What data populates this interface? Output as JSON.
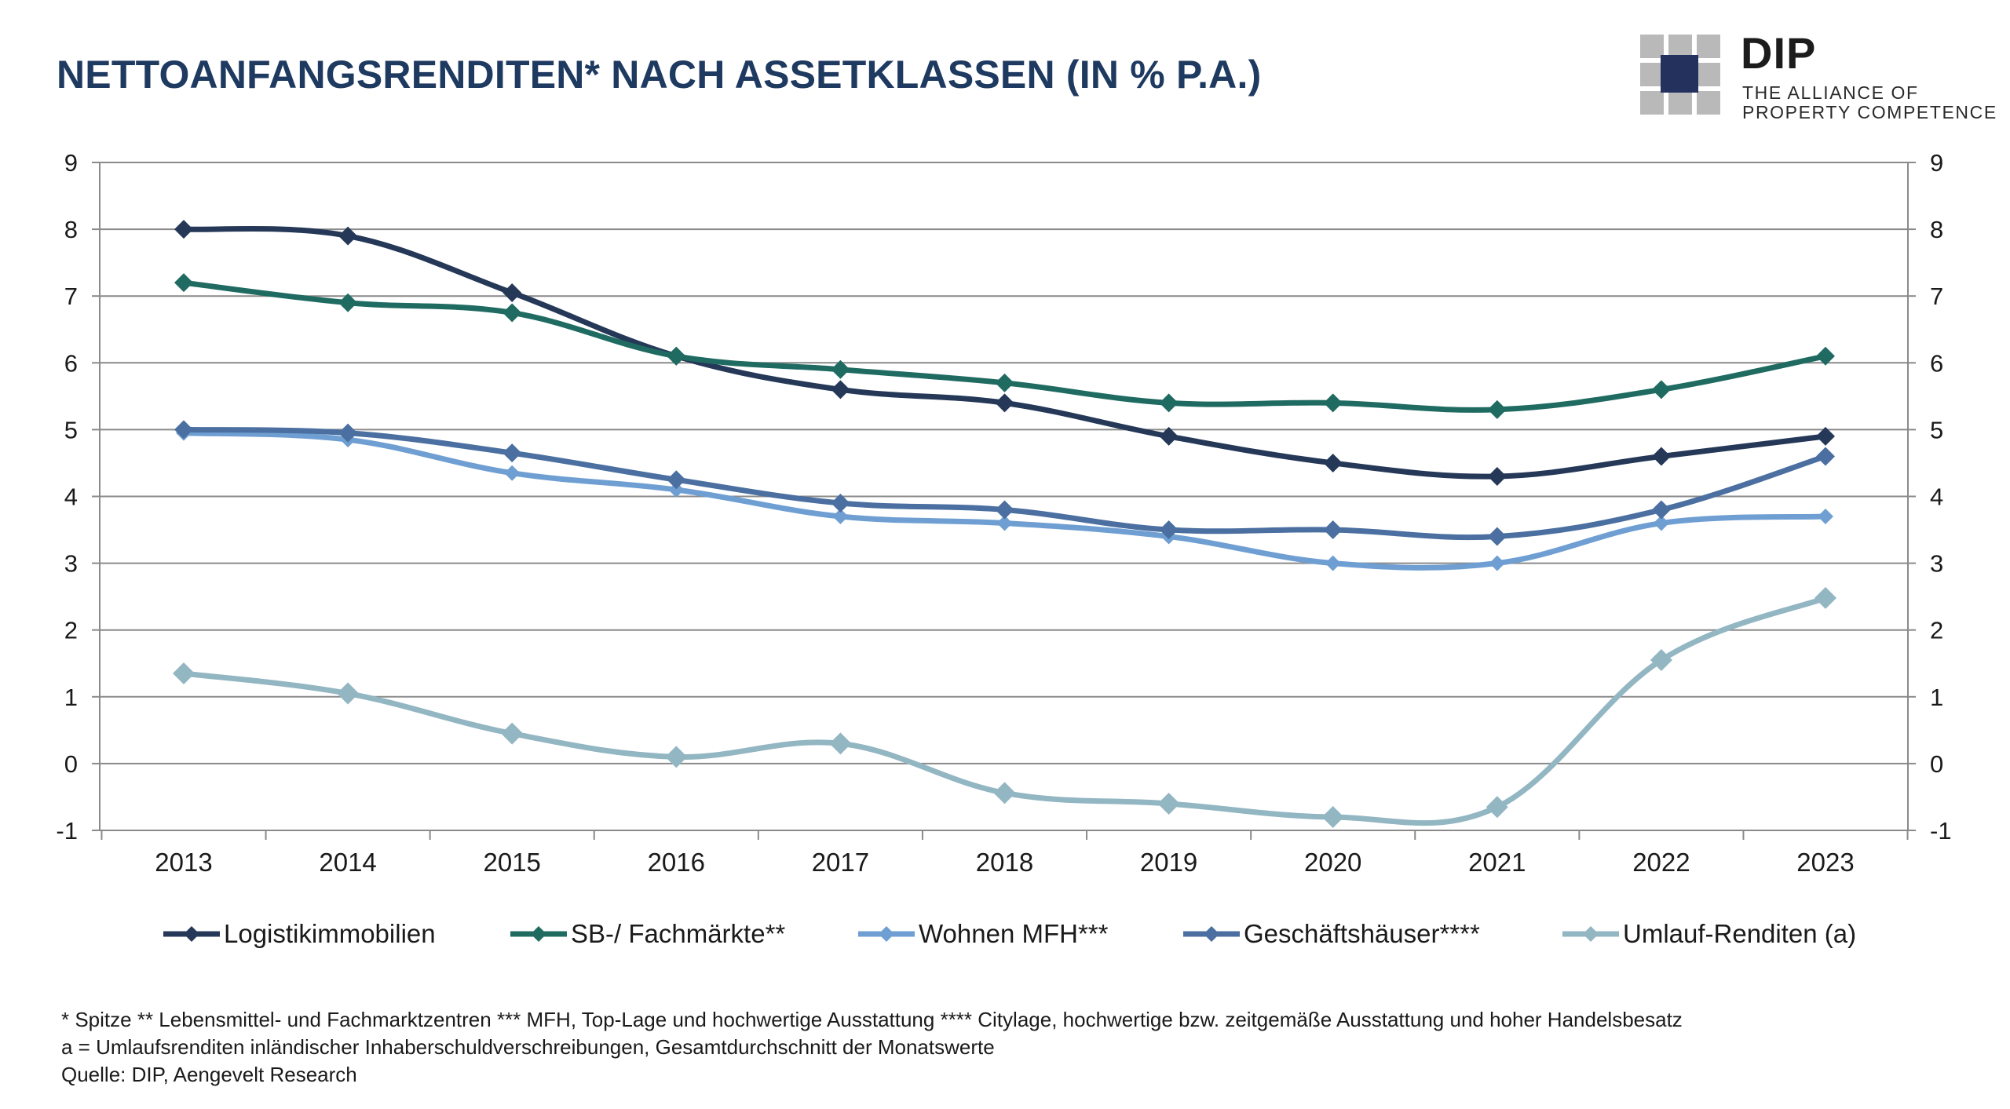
{
  "title": "NETTOANFANGSRENDITEN* NACH ASSETKLASSEN (IN % P.A.)",
  "logo": {
    "name": "DIP",
    "tagline_line1": "THE ALLIANCE OF",
    "tagline_line2": "PROPERTY COMPETENCE"
  },
  "chart_data": {
    "type": "line",
    "title": "NETTOANFANGSRENDITEN* NACH ASSETKLASSEN (IN % P.A.)",
    "xlabel": "",
    "ylabel": "",
    "x": [
      "2013",
      "2014",
      "2015",
      "2016",
      "2017",
      "2018",
      "2019",
      "2020",
      "2021",
      "2022",
      "2023"
    ],
    "ylim": [
      -1,
      9
    ],
    "yticks": [
      "9",
      "8",
      "7",
      "6",
      "5",
      "4",
      "3",
      "2",
      "1",
      "0",
      "-1"
    ],
    "secondary_yaxis": true,
    "grid": "horizontal",
    "legend_position": "bottom",
    "series": [
      {
        "name": "Logistikimmobilien",
        "color": "#253858",
        "values": [
          8.0,
          7.9,
          7.05,
          6.1,
          5.6,
          5.4,
          4.9,
          4.5,
          4.3,
          4.6,
          4.9
        ]
      },
      {
        "name": "SB-/ Fachmärkte**",
        "color": "#1f6b62",
        "values": [
          7.2,
          6.9,
          6.75,
          6.1,
          5.9,
          5.7,
          5.4,
          5.4,
          5.3,
          5.6,
          6.1
        ]
      },
      {
        "name": "Wohnen MFH***",
        "color": "#6f9fd2",
        "values": [
          4.95,
          4.85,
          4.35,
          4.1,
          3.7,
          3.6,
          3.4,
          3.0,
          3.0,
          3.6,
          3.7
        ]
      },
      {
        "name": "Geschäftshäuser****",
        "color": "#4a6fa0",
        "values": [
          5.0,
          4.95,
          4.65,
          4.25,
          3.9,
          3.8,
          3.5,
          3.5,
          3.4,
          3.8,
          4.6
        ]
      },
      {
        "name": "Umlauf-Renditen (a)",
        "color": "#93b6c3",
        "values": [
          1.35,
          1.05,
          0.45,
          0.1,
          0.3,
          -0.44,
          -0.6,
          -0.8,
          -0.65,
          1.55,
          2.48
        ]
      }
    ]
  },
  "footer": {
    "line1": "* Spitze ** Lebensmittel- und Fachmarktzentren *** MFH, Top-Lage und hochwertige Ausstattung **** Citylage, hochwertige bzw. zeitgemäße Ausstattung und hoher Handelsbesatz",
    "line2": "a = Umlaufsrenditen inländischer Inhaberschuldverschreibungen, Gesamtdurchschnitt der Monatswerte",
    "line3": "Quelle: DIP, Aengevelt Research"
  }
}
